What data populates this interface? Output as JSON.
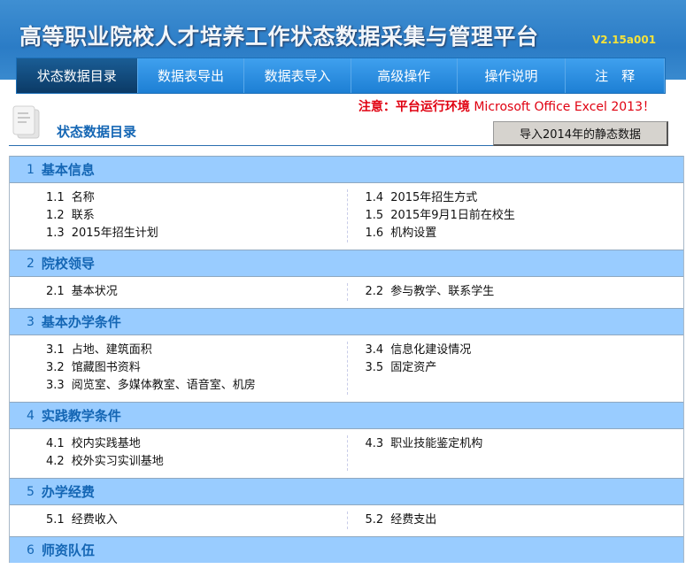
{
  "header": {
    "title": "高等职业院校人才培养工作状态数据采集与管理平台",
    "version": "V2.15a001"
  },
  "nav": {
    "tabs": [
      {
        "label": "状态数据目录",
        "active": true
      },
      {
        "label": "数据表导出"
      },
      {
        "label": "数据表导入"
      },
      {
        "label": "高级操作"
      },
      {
        "label": "操作说明"
      },
      {
        "label": "注　释"
      }
    ]
  },
  "notice": {
    "prefix": "注意：平台运行环境",
    "env": " Microsoft Office Excel 2013！"
  },
  "page": {
    "title": "状态数据目录",
    "import_button": "导入2014年的静态数据",
    "icon": "document-stack-icon"
  },
  "colors": {
    "accent": "#1466b4",
    "section_bg": "#99ccff",
    "notice": "#e00010"
  },
  "sections": [
    {
      "num": "1",
      "title": "基本信息",
      "left": [
        [
          "1.1",
          "名称"
        ],
        [
          "1.2",
          "联系"
        ],
        [
          "1.3",
          "2015年招生计划"
        ]
      ],
      "right": [
        [
          "1.4",
          "2015年招生方式"
        ],
        [
          "1.5",
          "2015年9月1日前在校生"
        ],
        [
          "1.6",
          "机构设置"
        ]
      ]
    },
    {
      "num": "2",
      "title": "院校领导",
      "left": [
        [
          "2.1",
          "基本状况"
        ]
      ],
      "right": [
        [
          "2.2",
          "参与教学、联系学生"
        ]
      ]
    },
    {
      "num": "3",
      "title": "基本办学条件",
      "left": [
        [
          "3.1",
          "占地、建筑面积"
        ],
        [
          "3.2",
          "馆藏图书资料"
        ],
        [
          "3.3",
          "阅览室、多媒体教室、语音室、机房"
        ]
      ],
      "right": [
        [
          "3.4",
          "信息化建设情况"
        ],
        [
          "3.5",
          "固定资产"
        ]
      ]
    },
    {
      "num": "4",
      "title": "实践教学条件",
      "left": [
        [
          "4.1",
          "校内实践基地"
        ],
        [
          "4.2",
          "校外实习实训基地"
        ]
      ],
      "right": [
        [
          "4.3",
          "职业技能鉴定机构"
        ]
      ]
    },
    {
      "num": "5",
      "title": "办学经费",
      "left": [
        [
          "5.1",
          "经费收入"
        ]
      ],
      "right": [
        [
          "5.2",
          "经费支出"
        ]
      ]
    },
    {
      "num": "6",
      "title": "师资队伍",
      "left": [],
      "right": []
    }
  ]
}
